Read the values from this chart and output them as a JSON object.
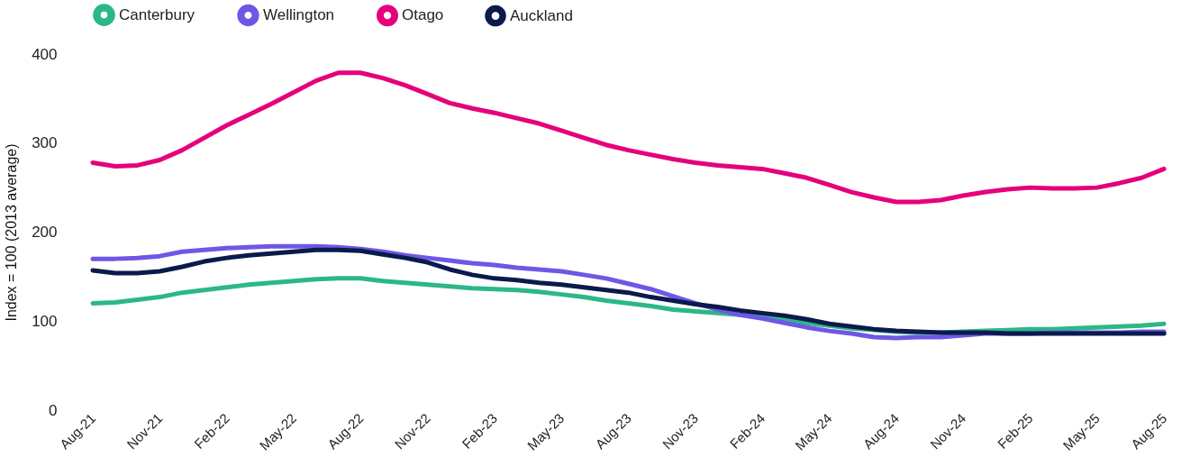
{
  "chart_data": {
    "type": "line",
    "ylabel": "Index = 100 (2013 average)",
    "categories": [
      "Aug-21",
      null,
      null,
      "Nov-21",
      null,
      null,
      "Feb-22",
      null,
      null,
      "May-22",
      null,
      null,
      "Aug-22",
      null,
      null,
      "Nov-22",
      null,
      null,
      "Feb-23",
      null,
      null,
      "May-23",
      null,
      null,
      "Aug-23",
      null,
      null,
      "Nov-23",
      null,
      null,
      "Feb-24",
      null,
      null,
      "May-24",
      null,
      null,
      "Aug-24",
      null,
      null,
      "Nov-24",
      null,
      null,
      "Feb-25",
      null,
      null,
      "May-25",
      null,
      null,
      "Aug-25"
    ],
    "series": [
      {
        "name": "Canterbury",
        "color": "#2bb886",
        "values": [
          120,
          121,
          124,
          127,
          132,
          135,
          138,
          141,
          143,
          145,
          147,
          148,
          148,
          145,
          143,
          141,
          139,
          137,
          136,
          135,
          133,
          130,
          127,
          123,
          120,
          117,
          113,
          111,
          109,
          107,
          105,
          102,
          98,
          95,
          92,
          90,
          88,
          87,
          87,
          88,
          89,
          90,
          91,
          91,
          92,
          93,
          94,
          95,
          97
        ]
      },
      {
        "name": "Wellington",
        "color": "#6e57e6",
        "values": [
          170,
          170,
          171,
          173,
          178,
          180,
          182,
          183,
          184,
          184,
          184,
          183,
          181,
          178,
          174,
          171,
          168,
          165,
          163,
          160,
          158,
          156,
          152,
          148,
          142,
          136,
          128,
          120,
          113,
          107,
          103,
          98,
          93,
          89,
          86,
          82,
          81,
          82,
          82,
          84,
          86,
          86,
          86,
          87,
          87,
          87,
          87,
          88,
          88
        ]
      },
      {
        "name": "Otago",
        "color": "#e5007d",
        "values": [
          278,
          274,
          275,
          281,
          292,
          306,
          320,
          332,
          344,
          357,
          370,
          379,
          379,
          373,
          365,
          355,
          345,
          339,
          334,
          328,
          322,
          314,
          306,
          298,
          292,
          287,
          282,
          278,
          275,
          273,
          271,
          266,
          261,
          253,
          245,
          239,
          234,
          234,
          236,
          241,
          245,
          248,
          250,
          249,
          249,
          250,
          255,
          261,
          271
        ]
      },
      {
        "name": "Auckland",
        "color": "#0b1a4b",
        "values": [
          157,
          154,
          154,
          156,
          161,
          167,
          171,
          174,
          176,
          178,
          180,
          180,
          179,
          175,
          171,
          166,
          158,
          152,
          148,
          146,
          143,
          141,
          138,
          135,
          132,
          127,
          123,
          119,
          116,
          112,
          109,
          106,
          102,
          97,
          94,
          91,
          89,
          88,
          87,
          87,
          87,
          86,
          86,
          86,
          86,
          86,
          86,
          86,
          86
        ]
      }
    ],
    "ylim": [
      0,
      400
    ],
    "yticks": [
      0,
      100,
      200,
      300,
      400
    ],
    "grid": false,
    "legend": "top",
    "line_style": "solid",
    "marker": "none"
  }
}
